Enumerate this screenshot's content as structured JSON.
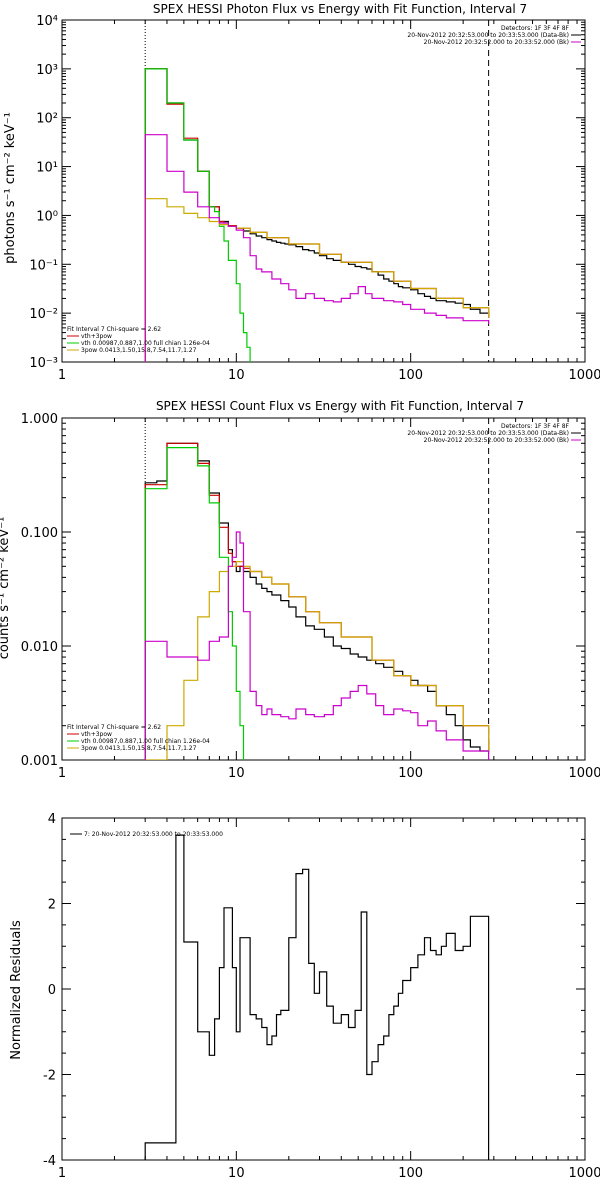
{
  "chart_data": [
    {
      "type": "line",
      "title": "SPEX HESSI Photon Flux vs Energy with Fit Function, Interval 7",
      "xlabel": "",
      "ylabel": "photons s⁻¹ cm⁻² keV⁻¹",
      "xscale": "log",
      "yscale": "log",
      "xlim": [
        1,
        1000
      ],
      "ylim": [
        0.001,
        10000
      ],
      "x_ticks": [
        "1",
        "10",
        "100",
        "1000"
      ],
      "y_ticks": [
        "10⁻³",
        "10⁻²",
        "10⁻¹",
        "10⁰",
        "10¹",
        "10²",
        "10³",
        "10⁴"
      ],
      "vlines": [
        {
          "x": 3.0,
          "style": "dotted"
        },
        {
          "x": 280,
          "style": "dashed"
        }
      ],
      "legend_top_right": [
        {
          "text": "Detectors: 1F 3F 4F 8F",
          "color": "#000000"
        },
        {
          "text": "20-Nov-2012 20:32:53.000 to 20:33:53.000 (Data-Bk)",
          "color": "#000000"
        },
        {
          "text": "20-Nov-2012 20:32:52.000 to 20:33:52.000 (Bk)",
          "color": "#cc00cc"
        }
      ],
      "legend_bottom_left": [
        {
          "text": "Fit Interval 7   Chi-square = 2.62",
          "color": "#000000"
        },
        {
          "text": "vth+3pow",
          "color": "#cc0000"
        },
        {
          "text": "vth 0.00987,0.887,1.00   full chian 1.26e-04",
          "color": "#00cc00"
        },
        {
          "text": "3pow 0.0413,1.50,15.8,7.54,11.7,1.27",
          "color": "#ccaa00"
        }
      ],
      "series": [
        {
          "color": "#000000",
          "x": [
            3.0,
            3.5,
            4.0,
            4.5,
            5.0,
            5.5,
            6.0,
            6.5,
            7.0,
            7.5,
            8.0,
            8.5,
            9.0,
            10,
            11,
            12,
            13,
            14,
            15,
            16,
            17,
            18,
            19,
            20,
            22,
            24,
            26,
            28,
            30,
            33,
            36,
            40,
            44,
            48,
            52,
            56,
            60,
            65,
            70,
            75,
            80,
            85,
            90,
            100,
            110,
            120,
            130,
            140,
            160,
            180,
            200,
            220,
            250,
            280
          ],
          "y": [
            1000,
            1000,
            200,
            200,
            35,
            35,
            8,
            8,
            1.5,
            1.5,
            0.75,
            0.75,
            0.6,
            0.55,
            0.48,
            0.42,
            0.38,
            0.35,
            0.32,
            0.3,
            0.28,
            0.27,
            0.26,
            0.25,
            0.23,
            0.2,
            0.19,
            0.17,
            0.15,
            0.13,
            0.12,
            0.11,
            0.1,
            0.09,
            0.085,
            0.08,
            0.07,
            0.06,
            0.05,
            0.045,
            0.04,
            0.035,
            0.033,
            0.03,
            0.025,
            0.022,
            0.02,
            0.018,
            0.017,
            0.016,
            0.015,
            0.012,
            0.01,
            0.008
          ]
        },
        {
          "color": "#cc0000",
          "x": [
            3.0,
            3.5,
            4.0,
            4.5,
            5.0,
            5.5,
            6.0,
            6.5,
            7.0,
            7.5,
            8.0,
            8.5,
            9.0,
            10,
            12,
            15,
            20,
            30,
            40,
            60,
            80,
            100,
            140,
            200,
            280
          ],
          "y": [
            1000,
            1000,
            190,
            190,
            38,
            38,
            8,
            8,
            1.5,
            1.5,
            0.75,
            0.7,
            0.62,
            0.55,
            0.45,
            0.35,
            0.26,
            0.16,
            0.11,
            0.07,
            0.045,
            0.032,
            0.02,
            0.013,
            0.008
          ]
        },
        {
          "color": "#00cc00",
          "x": [
            3.0,
            3.5,
            4.0,
            4.5,
            5.0,
            5.5,
            6.0,
            6.5,
            7.0,
            7.5,
            8.0,
            8.5,
            9.0,
            10,
            10.5,
            11,
            11.5,
            12
          ],
          "y": [
            1000,
            1000,
            200,
            200,
            35,
            35,
            8,
            8,
            1.5,
            1.2,
            0.6,
            0.3,
            0.12,
            0.04,
            0.01,
            0.004,
            0.002,
            0.001
          ]
        },
        {
          "color": "#ccaa00",
          "x": [
            3.0,
            3.5,
            4.0,
            4.5,
            5.0,
            5.5,
            6.0,
            6.5,
            7.0,
            7.5,
            8.0,
            9.0,
            10,
            12,
            15,
            20,
            30,
            40,
            60,
            80,
            100,
            140,
            200,
            280
          ],
          "y": [
            2.2,
            2.2,
            1.5,
            1.5,
            1.1,
            1.1,
            0.9,
            0.9,
            0.75,
            0.75,
            0.65,
            0.6,
            0.55,
            0.45,
            0.35,
            0.26,
            0.16,
            0.11,
            0.07,
            0.045,
            0.032,
            0.02,
            0.013,
            0.008
          ]
        },
        {
          "color": "#cc00cc",
          "x": [
            3.0,
            3.5,
            4.0,
            4.5,
            5.0,
            5.5,
            6.0,
            6.5,
            7.0,
            8.0,
            9.0,
            10,
            11,
            12,
            13,
            14,
            16,
            18,
            20,
            22,
            25,
            28,
            32,
            36,
            40,
            45,
            50,
            55,
            60,
            70,
            80,
            90,
            100,
            120,
            140,
            160,
            200,
            240,
            280
          ],
          "y": [
            45,
            45,
            8,
            8,
            3,
            3,
            1.5,
            1.5,
            0.9,
            0.7,
            0.6,
            0.5,
            0.35,
            0.15,
            0.08,
            0.07,
            0.05,
            0.04,
            0.03,
            0.02,
            0.025,
            0.02,
            0.018,
            0.017,
            0.02,
            0.025,
            0.035,
            0.025,
            0.02,
            0.018,
            0.017,
            0.015,
            0.012,
            0.01,
            0.009,
            0.008,
            0.007,
            0.007,
            0.006
          ]
        }
      ]
    },
    {
      "type": "line",
      "title": "SPEX HESSI Count Flux vs Energy with Fit Function, Interval 7",
      "xlabel": "",
      "ylabel": "counts s⁻¹ cm⁻² keV⁻¹",
      "xscale": "log",
      "yscale": "log",
      "xlim": [
        1,
        1000
      ],
      "ylim": [
        0.001,
        1.0
      ],
      "x_ticks": [
        "1",
        "10",
        "100",
        "1000"
      ],
      "y_ticks": [
        "0.001",
        "0.010",
        "0.100",
        "1.000"
      ],
      "vlines": [
        {
          "x": 3.0,
          "style": "dotted"
        },
        {
          "x": 280,
          "style": "dashed"
        }
      ],
      "legend_top_right": [
        {
          "text": "Detectors: 1F 3F 4F 8F",
          "color": "#000000"
        },
        {
          "text": "20-Nov-2012 20:32:53.000 to 20:33:53.000 (Data-Bk)",
          "color": "#000000"
        },
        {
          "text": "20-Nov-2012 20:32:52.000 to 20:33:52.000 (Bk)",
          "color": "#cc00cc"
        }
      ],
      "legend_bottom_left": [
        {
          "text": "Fit Interval 7   Chi-square = 2.62",
          "color": "#000000"
        },
        {
          "text": "vth+3pow",
          "color": "#cc0000"
        },
        {
          "text": "vth 0.00987,0.887,1.00   full chian 1.26e-04",
          "color": "#00cc00"
        },
        {
          "text": "3pow 0.0413,1.50,15.8,7.54,11.7,1.27",
          "color": "#ccaa00"
        }
      ],
      "series": [
        {
          "color": "#000000",
          "x": [
            3.0,
            3.5,
            4.0,
            4.5,
            5.0,
            5.5,
            6.0,
            6.5,
            7.0,
            7.5,
            8.0,
            8.5,
            9.0,
            9.5,
            10,
            10.5,
            11,
            12,
            13,
            14,
            15,
            16,
            18,
            20,
            22,
            25,
            28,
            32,
            36,
            40,
            45,
            50,
            56,
            63,
            70,
            80,
            90,
            100,
            110,
            125,
            140,
            160,
            180,
            200,
            220,
            250,
            280
          ],
          "y": [
            0.27,
            0.28,
            0.6,
            0.6,
            0.6,
            0.6,
            0.42,
            0.42,
            0.22,
            0.22,
            0.12,
            0.12,
            0.07,
            0.055,
            0.045,
            0.05,
            0.045,
            0.04,
            0.035,
            0.032,
            0.03,
            0.028,
            0.025,
            0.022,
            0.018,
            0.015,
            0.014,
            0.012,
            0.01,
            0.0095,
            0.0085,
            0.008,
            0.0075,
            0.007,
            0.0065,
            0.006,
            0.0055,
            0.005,
            0.0045,
            0.004,
            0.003,
            0.0025,
            0.002,
            0.0015,
            0.0013,
            0.0012,
            0.0015
          ]
        },
        {
          "color": "#cc0000",
          "x": [
            3.0,
            3.5,
            4.0,
            4.5,
            5.0,
            5.5,
            6.0,
            6.5,
            7.0,
            7.5,
            8.0,
            8.5,
            9.0,
            9.5,
            10,
            11,
            12,
            14,
            16,
            20,
            25,
            30,
            40,
            60,
            80,
            100,
            140,
            200,
            280
          ],
          "y": [
            0.26,
            0.26,
            0.6,
            0.6,
            0.6,
            0.6,
            0.4,
            0.4,
            0.21,
            0.21,
            0.11,
            0.11,
            0.065,
            0.055,
            0.05,
            0.048,
            0.045,
            0.04,
            0.035,
            0.027,
            0.02,
            0.016,
            0.012,
            0.0075,
            0.0055,
            0.0045,
            0.003,
            0.002,
            0.0012
          ]
        },
        {
          "color": "#00cc00",
          "x": [
            3.0,
            3.5,
            4.0,
            4.5,
            5.0,
            5.5,
            6.0,
            6.5,
            7.0,
            7.5,
            8.0,
            8.5,
            9.0,
            9.5,
            10,
            10.5,
            11
          ],
          "y": [
            0.24,
            0.24,
            0.55,
            0.55,
            0.55,
            0.55,
            0.38,
            0.38,
            0.18,
            0.18,
            0.06,
            0.06,
            0.02,
            0.01,
            0.004,
            0.002,
            0.001
          ]
        },
        {
          "color": "#ccaa00",
          "x": [
            3.0,
            3.5,
            4.0,
            4.5,
            5.0,
            5.5,
            6.0,
            6.5,
            7.0,
            7.5,
            8.0,
            8.5,
            9.0,
            10,
            11,
            12,
            14,
            16,
            20,
            25,
            30,
            40,
            60,
            80,
            100,
            140,
            200,
            280
          ],
          "y": [
            0.001,
            0.001,
            0.002,
            0.002,
            0.005,
            0.005,
            0.018,
            0.018,
            0.03,
            0.03,
            0.045,
            0.045,
            0.05,
            0.055,
            0.05,
            0.045,
            0.04,
            0.035,
            0.027,
            0.02,
            0.016,
            0.012,
            0.0075,
            0.0055,
            0.0045,
            0.003,
            0.002,
            0.0012
          ]
        },
        {
          "color": "#cc00cc",
          "x": [
            3.0,
            3.5,
            4.0,
            4.5,
            5.0,
            5.5,
            6.0,
            6.5,
            7.0,
            7.5,
            8.0,
            8.5,
            9.0,
            9.5,
            10,
            10.5,
            11,
            12,
            13,
            14,
            15,
            16,
            18,
            20,
            22,
            25,
            28,
            32,
            36,
            40,
            45,
            50,
            56,
            63,
            70,
            80,
            90,
            100,
            110,
            125,
            140,
            160,
            200,
            280
          ],
          "y": [
            0.011,
            0.011,
            0.008,
            0.008,
            0.008,
            0.008,
            0.0075,
            0.0075,
            0.011,
            0.011,
            0.012,
            0.012,
            0.05,
            0.06,
            0.1,
            0.08,
            0.02,
            0.004,
            0.003,
            0.0025,
            0.0028,
            0.0025,
            0.0024,
            0.0023,
            0.0028,
            0.0025,
            0.0024,
            0.0025,
            0.003,
            0.0035,
            0.004,
            0.0045,
            0.0038,
            0.003,
            0.0025,
            0.0028,
            0.0027,
            0.0026,
            0.002,
            0.0022,
            0.0018,
            0.0015,
            0.0012,
            0.001
          ]
        }
      ]
    },
    {
      "type": "line",
      "title": "",
      "xlabel": "",
      "ylabel": "Normalized Residuals",
      "xscale": "log",
      "yscale": "linear",
      "xlim": [
        1,
        1000
      ],
      "ylim": [
        -4,
        4
      ],
      "x_ticks": [
        "1",
        "10",
        "100",
        "1000"
      ],
      "y_ticks": [
        "-4",
        "-2",
        "0",
        "2",
        "4"
      ],
      "legend_top_left": [
        {
          "text": "7: 20-Nov-2012 20:32:53.000 to 20:33:53.000",
          "color": "#000000"
        }
      ],
      "series": [
        {
          "color": "#000000",
          "x": [
            3.0,
            4.5,
            5.0,
            5.5,
            6.0,
            6.5,
            7.0,
            7.5,
            8.0,
            8.5,
            9.0,
            9.5,
            10,
            10.5,
            11,
            12,
            13,
            14,
            15,
            16,
            17,
            18,
            20,
            22,
            24,
            26,
            28,
            30,
            33,
            36,
            40,
            44,
            48,
            52,
            56,
            60,
            65,
            70,
            75,
            80,
            85,
            90,
            100,
            110,
            120,
            130,
            140,
            150,
            160,
            180,
            200,
            220,
            250,
            280
          ],
          "y": [
            -3.6,
            3.6,
            1.1,
            1.1,
            -1.0,
            -1.0,
            -1.55,
            -0.7,
            0.5,
            1.9,
            1.9,
            0.5,
            -1.0,
            1.2,
            1.2,
            -0.6,
            -0.7,
            -0.9,
            -1.3,
            -1.1,
            -0.6,
            -0.5,
            1.2,
            2.7,
            2.8,
            0.6,
            -0.1,
            0.4,
            -0.4,
            -0.8,
            -0.6,
            -0.9,
            -0.5,
            1.8,
            -2.0,
            -1.7,
            -1.3,
            -1.1,
            -0.6,
            -0.4,
            -0.1,
            0.2,
            0.5,
            0.8,
            1.2,
            0.9,
            0.8,
            1.0,
            1.3,
            0.9,
            1.0,
            1.7,
            1.7,
            -4
          ]
        }
      ]
    }
  ]
}
